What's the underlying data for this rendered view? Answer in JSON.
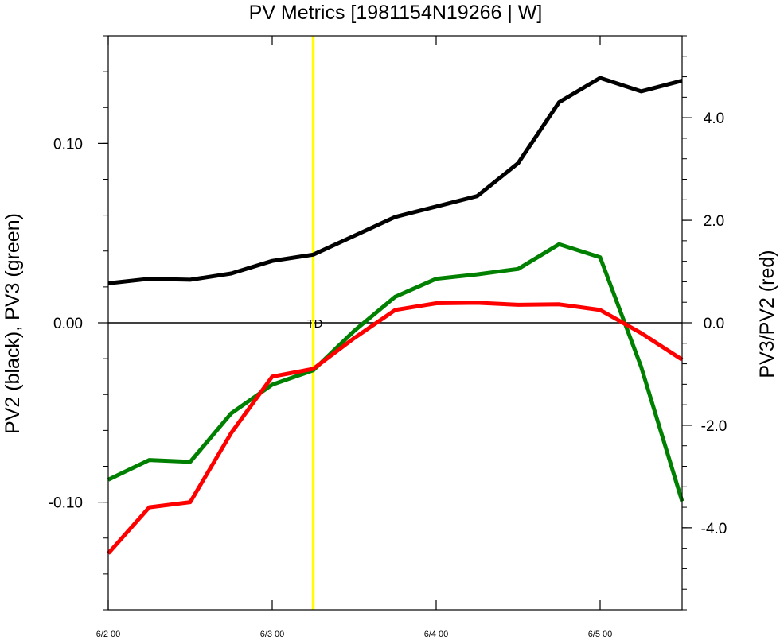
{
  "chart_data": {
    "type": "line",
    "title": "PV Metrics [1981154N19266 | W]",
    "ylabel_left": "PV2 (black), PV3 (green)",
    "ylabel_right": "PV3/PV2 (red)",
    "x_ticks": [
      {
        "x": 0,
        "label": "6/2 00"
      },
      {
        "x": 1,
        "label": "6/3 00"
      },
      {
        "x": 2,
        "label": "6/4 00"
      },
      {
        "x": 3,
        "label": "6/5 00"
      }
    ],
    "x_range": [
      0,
      3.5
    ],
    "left_axis": {
      "range": [
        -0.16,
        0.16
      ],
      "major": [
        -0.1,
        0.0,
        0.1
      ],
      "labels": [
        "-0.10",
        "0.00",
        "0.10"
      ],
      "minor_step": 0.02
    },
    "right_axis": {
      "range": [
        -5.6,
        5.6
      ],
      "major": [
        -4.0,
        -2.0,
        0.0,
        2.0,
        4.0
      ],
      "labels": [
        "-4.0",
        "-2.0",
        "0.0",
        "2.0",
        "4.0"
      ],
      "minor_step": 0.4
    },
    "x": [
      0,
      0.25,
      0.5,
      0.75,
      1.0,
      1.25,
      1.5,
      1.75,
      2.0,
      2.25,
      2.5,
      2.75,
      3.0,
      3.25,
      3.5
    ],
    "series": [
      {
        "key": "pv2",
        "axis": "left",
        "color": "#000000",
        "values": [
          0.022,
          0.0245,
          0.024,
          0.0275,
          0.0345,
          0.038,
          0.0485,
          0.059,
          0.0648,
          0.0706,
          0.089,
          0.123,
          0.1365,
          0.129,
          0.135
        ]
      },
      {
        "key": "pv3",
        "axis": "left",
        "color": "#008000",
        "values": [
          -0.0875,
          -0.0765,
          -0.0775,
          -0.0505,
          -0.0345,
          -0.0265,
          -0.0045,
          0.0145,
          0.0245,
          0.027,
          0.03,
          0.0438,
          0.0365,
          -0.0245,
          -0.0995
        ]
      },
      {
        "key": "ratio",
        "axis": "right",
        "color": "#ff0000",
        "values": [
          -4.5,
          -3.6,
          -3.5,
          -2.15,
          -1.05,
          -0.9,
          -0.3,
          0.25,
          0.38,
          0.39,
          0.35,
          0.36,
          0.25,
          -0.2,
          -0.72
        ]
      }
    ],
    "zero_line": {
      "value": 0.0,
      "color": "#000000"
    },
    "marker_line": {
      "x": 1.25,
      "color": "#ffff00",
      "label": "TD"
    },
    "grid": false
  }
}
